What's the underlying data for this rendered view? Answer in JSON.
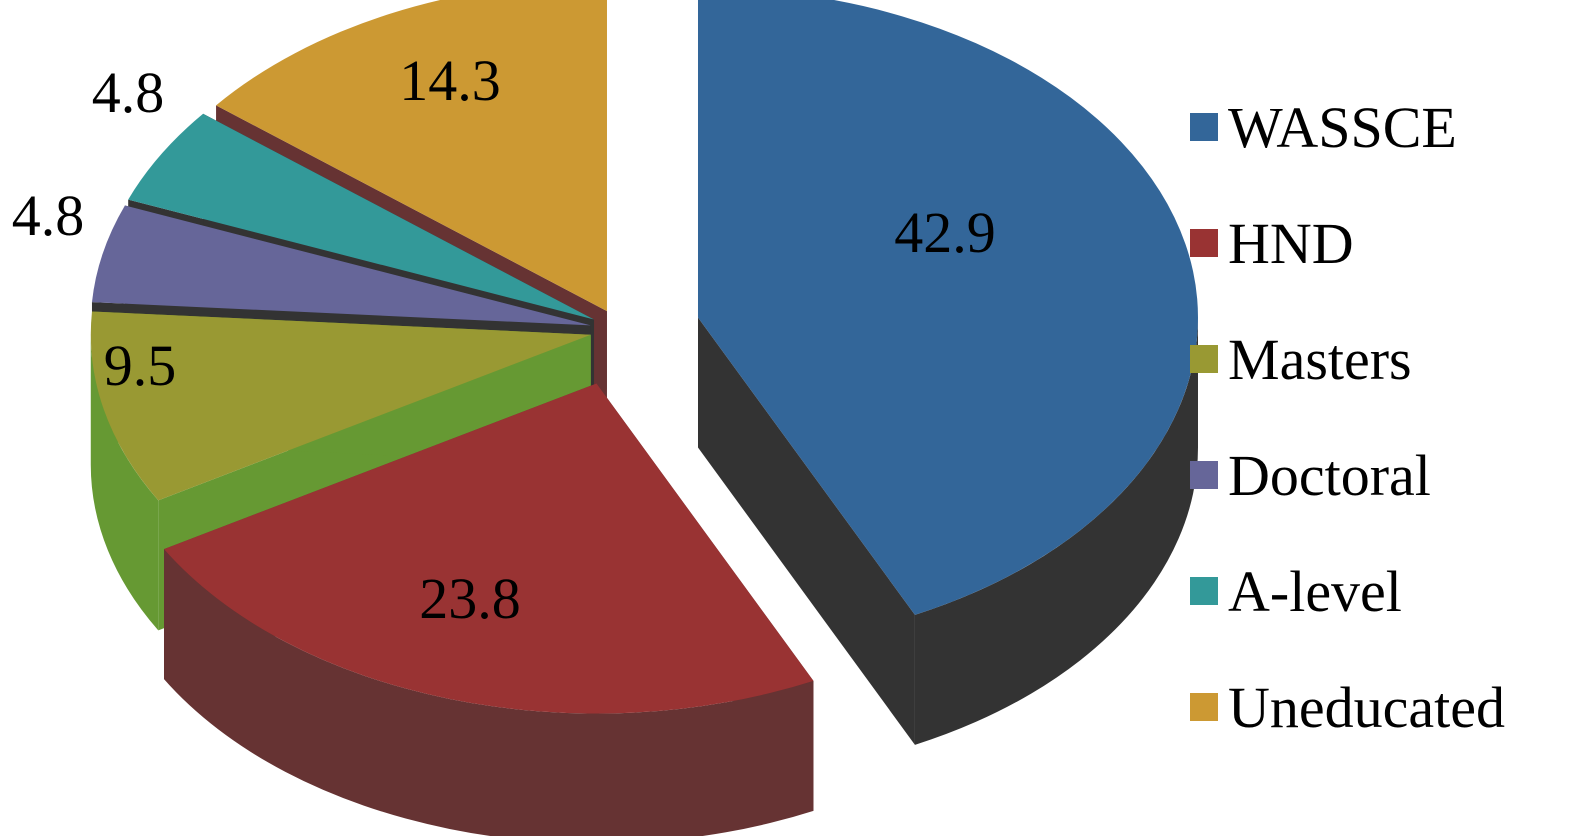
{
  "chart_data": {
    "type": "pie",
    "title": "",
    "style": "3d-exploded",
    "legend_position": "right",
    "slices": [
      {
        "label": "WASSCE",
        "value": 42.9,
        "value_label": "42.9",
        "color": "#336699",
        "side_color": "#333333"
      },
      {
        "label": "HND",
        "value": 23.8,
        "value_label": "23.8",
        "color": "#993333",
        "side_color": "#663333"
      },
      {
        "label": "Masters",
        "value": 9.5,
        "value_label": "9.5",
        "color": "#999933",
        "side_color": "#669933"
      },
      {
        "label": "Doctoral",
        "value": 4.8,
        "value_label": "4.8",
        "color": "#666699",
        "side_color": "#333333"
      },
      {
        "label": "A-level",
        "value": 4.8,
        "value_label": "4.8",
        "color": "#339999",
        "side_color": "#333333"
      },
      {
        "label": "Uneducated",
        "value": 14.3,
        "value_label": "14.3",
        "color": "#CC9933",
        "side_color": "#663333"
      }
    ]
  }
}
